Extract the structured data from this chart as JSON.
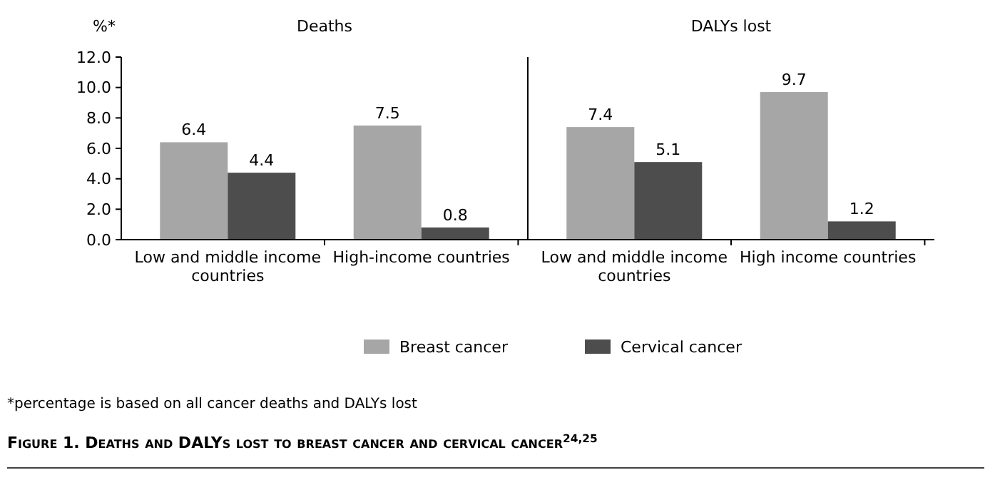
{
  "chart_data": [
    {
      "type": "bar",
      "title": "Deaths",
      "ylabel": "%*",
      "categories": [
        "Low and middle income countries",
        "High-income countries"
      ],
      "series": [
        {
          "name": "Breast cancer",
          "color": "#a6a6a6",
          "values": [
            6.4,
            7.5
          ]
        },
        {
          "name": "Cervical cancer",
          "color": "#4d4d4d",
          "values": [
            4.4,
            0.8
          ]
        }
      ],
      "ylim": [
        0,
        12
      ],
      "yticks": [
        {
          "value": 0,
          "label": "0.0"
        },
        {
          "value": 2,
          "label": "2.0"
        },
        {
          "value": 4,
          "label": "4.0"
        },
        {
          "value": 6,
          "label": "6.0"
        },
        {
          "value": 8,
          "label": "8.0"
        },
        {
          "value": 10,
          "label": "10.0"
        },
        {
          "value": 12,
          "label": "12.0"
        }
      ],
      "data_labels": true,
      "legend": "bottom",
      "grid": false,
      "annotations": [
        "*percentage is based on all cancer deaths and DALYs lost",
        "Figure 1. Deaths and DALYs lost to breast cancer and cervical cancer$^{24,25}$"
      ]
    },
    {
      "type": "bar",
      "title": "DALYs lost",
      "categories": [
        "Low and middle income countries",
        "High income countries"
      ],
      "series": [
        {
          "color": "#a6a6a6",
          "values": [
            7.4,
            9.7
          ]
        },
        {
          "color": "#4d4d4d",
          "values": [
            5.1,
            1.2
          ]
        }
      ],
      "ylim": [
        0,
        12
      ],
      "tick_labels": "x",
      "data_labels": true,
      "grid": false
    }
  ]
}
